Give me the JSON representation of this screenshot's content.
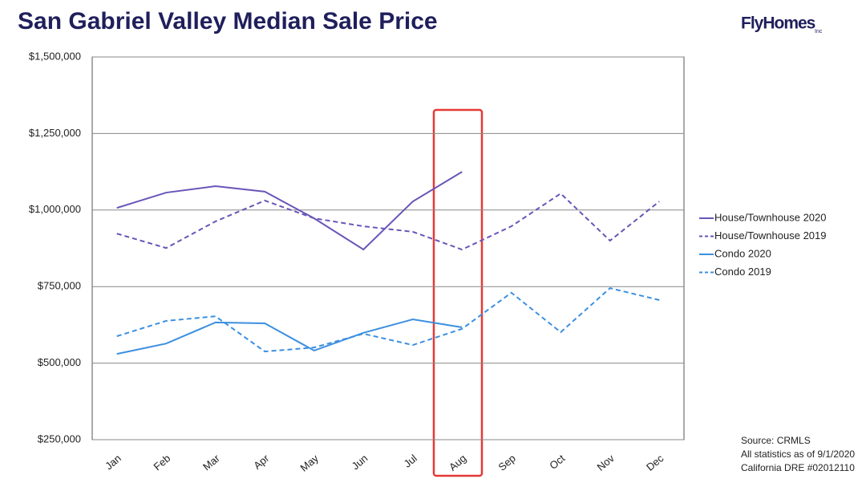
{
  "chart_data": {
    "type": "line",
    "title": "San Gabriel Valley Median Sale Price",
    "logo": "FlyHomes",
    "logo_suffix": "Inc",
    "categories": [
      "Jan",
      "Feb",
      "Mar",
      "Apr",
      "May",
      "Jun",
      "Jul",
      "Aug",
      "Sep",
      "Oct",
      "Nov",
      "Dec"
    ],
    "series": [
      {
        "name": "House/Townhouse 2020",
        "color": "#6a55b8",
        "dashed": false,
        "values": [
          1007000,
          1057000,
          1078000,
          1060000,
          973000,
          871000,
          1028000,
          1125000,
          null,
          null,
          null,
          null
        ]
      },
      {
        "name": "House/Townhouse 2019",
        "color": "#6a55b8",
        "dashed": true,
        "values": [
          923000,
          876000,
          963000,
          1031000,
          973000,
          947000,
          929000,
          871000,
          947000,
          1054000,
          900000,
          1028000
        ]
      },
      {
        "name": "Condo 2020",
        "color": "#3b8fe0",
        "dashed": false,
        "values": [
          530000,
          564000,
          633000,
          630000,
          541000,
          599000,
          643000,
          617000,
          null,
          null,
          null,
          null
        ]
      },
      {
        "name": "Condo 2019",
        "color": "#3b8fe0",
        "dashed": true,
        "values": [
          588000,
          638000,
          653000,
          538000,
          551000,
          596000,
          559000,
          612000,
          730000,
          601000,
          745000,
          706000
        ]
      }
    ],
    "ylim": [
      250000,
      1500000
    ],
    "yticks": [
      {
        "value": 250000,
        "label": "$250,000"
      },
      {
        "value": 500000,
        "label": "$500,000"
      },
      {
        "value": 750000,
        "label": "$750,000"
      },
      {
        "value": 1000000,
        "label": "$1,000,000"
      },
      {
        "value": 1250000,
        "label": "$1,250,000"
      },
      {
        "value": 1500000,
        "label": "$1,500,000"
      }
    ],
    "grid": true,
    "legend": "right",
    "source_lines": [
      "Source: CRMLS",
      "All statistics as of 9/1/2020",
      "California DRE #02012110"
    ]
  }
}
